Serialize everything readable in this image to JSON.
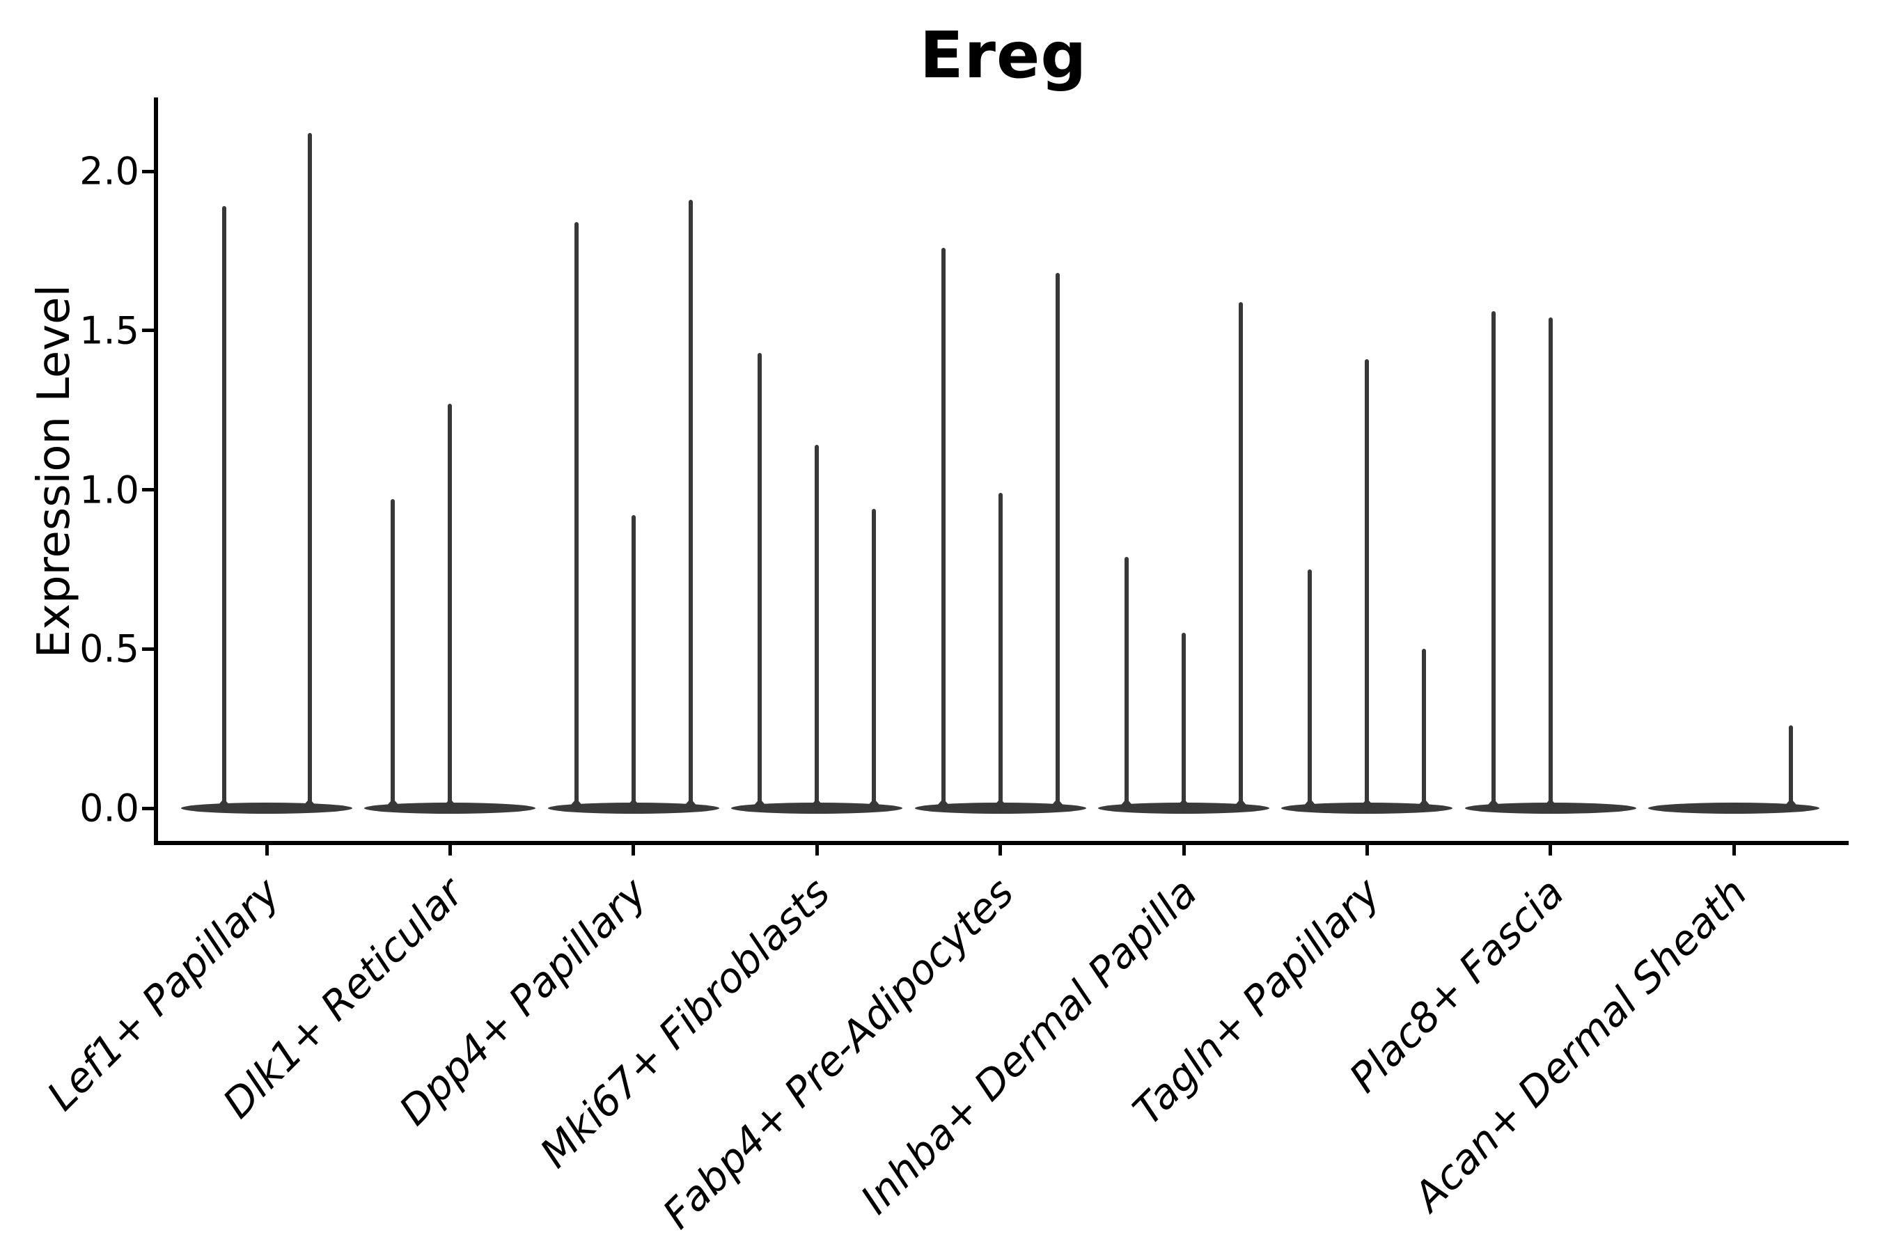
{
  "colors": {
    "background": "#ffffff",
    "violin": "#383838",
    "axis": "#000000",
    "text": "#000000"
  },
  "chart_data": {
    "type": "violin",
    "title": "Ereg",
    "xlabel": "",
    "ylabel": "Expression Level",
    "ylim": [
      -0.12,
      2.23
    ],
    "grid": false,
    "legend": "none",
    "yticks": [
      0.0,
      0.5,
      1.0,
      1.5,
      2.0
    ],
    "ytick_labels": [
      "0.0",
      "0.5",
      "1.0",
      "1.5",
      "2.0"
    ],
    "categories": [
      "Lef1+ Papillary",
      "Dlk1+ Reticular",
      "Dpp4+ Papillary",
      "Mki67+ Fibroblasts",
      "Fabp4+ Pre-Adipocytes",
      "Inhba+ Dermal Papilla",
      "Tagln+ Papillary",
      "Plac8+ Fascia",
      "Acan+ Dermal Sheath"
    ],
    "groups": [
      {
        "label": "Lef1+ Papillary",
        "violins": [
          {
            "max": 1.89
          },
          {
            "max": 2.12
          }
        ]
      },
      {
        "label": "Dlk1+ Reticular",
        "violins": [
          {
            "max": 0.97
          },
          {
            "max": 1.27
          },
          {
            "max": 0
          }
        ]
      },
      {
        "label": "Dpp4+ Papillary",
        "violins": [
          {
            "max": 1.84
          },
          {
            "max": 0.92
          },
          {
            "max": 1.91
          }
        ]
      },
      {
        "label": "Mki67+ Fibroblasts",
        "violins": [
          {
            "max": 1.43
          },
          {
            "max": 1.14
          },
          {
            "max": 0.94
          }
        ]
      },
      {
        "label": "Fabp4+ Pre-Adipocytes",
        "violins": [
          {
            "max": 1.76
          },
          {
            "max": 0.99
          },
          {
            "max": 1.68
          }
        ]
      },
      {
        "label": "Inhba+ Dermal Papilla",
        "violins": [
          {
            "max": 0.79
          },
          {
            "max": 0.55
          },
          {
            "max": 1.59
          }
        ]
      },
      {
        "label": "Tagln+ Papillary",
        "violins": [
          {
            "max": 0.75
          },
          {
            "max": 1.41
          },
          {
            "max": 0.5
          }
        ]
      },
      {
        "label": "Plac8+ Fascia",
        "violins": [
          {
            "max": 1.56
          },
          {
            "max": 1.54
          },
          {
            "max": 0
          }
        ]
      },
      {
        "label": "Acan+ Dermal Sheath",
        "violins": [
          {
            "max": 0
          },
          {
            "max": 0
          },
          {
            "max": 0.26
          }
        ]
      }
    ],
    "notes": "Each violin is an expression distribution concentrated at 0 with a thin spike rising to its maximum value."
  }
}
